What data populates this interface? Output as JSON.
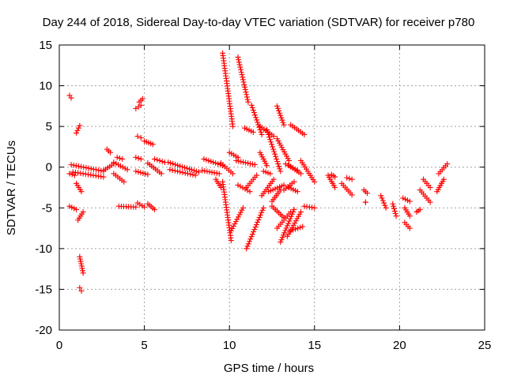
{
  "chart_data": {
    "type": "scatter",
    "title": "Day 244 of 2018, Sidereal Day-to-day VTEC variation (SDTVAR) for receiver p780",
    "xlabel": "GPS time / hours",
    "ylabel": "SDTVAR / TECUs",
    "xlim": [
      0,
      25
    ],
    "ylim": [
      -20,
      15
    ],
    "xticks": [
      0,
      5,
      10,
      15,
      20,
      25
    ],
    "yticks": [
      -20,
      -15,
      -10,
      -5,
      0,
      5,
      10,
      15
    ],
    "xtick_labels": [
      "0",
      "5",
      "10",
      "15",
      "20",
      "25"
    ],
    "ytick_labels": [
      "-20",
      "-15",
      "-10",
      "-5",
      "0",
      "5",
      "10",
      "15"
    ],
    "grid": true,
    "marker": "+",
    "color": "#ff0000",
    "series": [
      {
        "name": "SDTVAR",
        "segments": [
          {
            "x": [
              0.6,
              0.7
            ],
            "y": [
              8.8,
              8.5
            ]
          },
          {
            "x": [
              0.6,
              0.9
            ],
            "y": [
              -0.8,
              -1.0
            ]
          },
          {
            "x": [
              0.6,
              1.0
            ],
            "y": [
              -4.8,
              -5.2
            ]
          },
          {
            "x": [
              1.0,
              1.2
            ],
            "y": [
              4.2,
              5.1
            ]
          },
          {
            "x": [
              1.0,
              1.3
            ],
            "y": [
              -2.0,
              -3.0
            ]
          },
          {
            "x": [
              1.1,
              1.4
            ],
            "y": [
              -6.5,
              -5.5
            ]
          },
          {
            "x": [
              1.2,
              1.4
            ],
            "y": [
              -11.0,
              -13.0
            ]
          },
          {
            "x": [
              1.2,
              1.3
            ],
            "y": [
              -14.8,
              -15.2
            ]
          },
          {
            "x": [
              0.7,
              2.6
            ],
            "y": [
              0.3,
              -0.5
            ]
          },
          {
            "x": [
              0.8,
              2.6
            ],
            "y": [
              -0.6,
              -1.2
            ]
          },
          {
            "x": [
              2.6,
              3.2
            ],
            "y": [
              -0.4,
              0.4
            ]
          },
          {
            "x": [
              2.8,
              3.0
            ],
            "y": [
              2.2,
              1.8
            ]
          },
          {
            "x": [
              3.2,
              4.0
            ],
            "y": [
              0.6,
              -0.3
            ]
          },
          {
            "x": [
              3.2,
              3.8
            ],
            "y": [
              -0.8,
              -1.8
            ]
          },
          {
            "x": [
              3.4,
              3.7
            ],
            "y": [
              1.2,
              1.0
            ]
          },
          {
            "x": [
              3.5,
              4.5
            ],
            "y": [
              -4.8,
              -4.9
            ]
          },
          {
            "x": [
              4.5,
              4.8
            ],
            "y": [
              7.2,
              7.6
            ]
          },
          {
            "x": [
              4.7,
              4.9
            ],
            "y": [
              8.0,
              8.4
            ]
          },
          {
            "x": [
              4.6,
              4.8
            ],
            "y": [
              3.8,
              3.6
            ]
          },
          {
            "x": [
              4.5,
              4.8
            ],
            "y": [
              1.2,
              1.0
            ]
          },
          {
            "x": [
              4.5,
              5.2
            ],
            "y": [
              -0.5,
              -0.9
            ]
          },
          {
            "x": [
              4.6,
              5.0
            ],
            "y": [
              -4.4,
              -4.9
            ]
          },
          {
            "x": [
              5.0,
              5.5
            ],
            "y": [
              3.2,
              2.8
            ]
          },
          {
            "x": [
              5.2,
              6.0
            ],
            "y": [
              0.5,
              -0.8
            ]
          },
          {
            "x": [
              5.2,
              5.6
            ],
            "y": [
              -4.5,
              -5.2
            ]
          },
          {
            "x": [
              5.6,
              6.2
            ],
            "y": [
              1.0,
              0.6
            ]
          },
          {
            "x": [
              6.4,
              8.2
            ],
            "y": [
              0.6,
              -0.6
            ]
          },
          {
            "x": [
              6.5,
              8.0
            ],
            "y": [
              -0.3,
              -1.0
            ]
          },
          {
            "x": [
              8.5,
              9.6
            ],
            "y": [
              1.0,
              0.2
            ]
          },
          {
            "x": [
              8.4,
              9.4
            ],
            "y": [
              -0.4,
              -0.8
            ]
          },
          {
            "x": [
              9.2,
              9.5
            ],
            "y": [
              -1.5,
              -2.5
            ]
          },
          {
            "x": [
              9.6,
              10.2
            ],
            "y": [
              14.0,
              5.0
            ]
          },
          {
            "x": [
              9.6,
              10.1
            ],
            "y": [
              -1.8,
              -9.0
            ]
          },
          {
            "x": [
              9.5,
              10.2
            ],
            "y": [
              0.5,
              -0.8
            ]
          },
          {
            "x": [
              10.0,
              10.5
            ],
            "y": [
              1.8,
              1.2
            ]
          },
          {
            "x": [
              10.1,
              10.8
            ],
            "y": [
              -7.8,
              -5.0
            ]
          },
          {
            "x": [
              10.5,
              11.1
            ],
            "y": [
              13.5,
              8.0
            ]
          },
          {
            "x": [
              10.5,
              11.2
            ],
            "y": [
              -2.2,
              -3.0
            ]
          },
          {
            "x": [
              10.4,
              11.5
            ],
            "y": [
              0.8,
              0.3
            ]
          },
          {
            "x": [
              10.9,
              11.4
            ],
            "y": [
              4.8,
              4.3
            ]
          },
          {
            "x": [
              11.3,
              11.9
            ],
            "y": [
              7.6,
              4.0
            ]
          },
          {
            "x": [
              11.0,
              11.6
            ],
            "y": [
              -2.5,
              -1.0
            ]
          },
          {
            "x": [
              11.0,
              12.0
            ],
            "y": [
              -10.0,
              -5.0
            ]
          },
          {
            "x": [
              11.8,
              12.2
            ],
            "y": [
              1.8,
              0.2
            ]
          },
          {
            "x": [
              11.8,
              12.6
            ],
            "y": [
              5.0,
              3.8
            ]
          },
          {
            "x": [
              11.9,
              12.6
            ],
            "y": [
              -3.5,
              -1.5
            ]
          },
          {
            "x": [
              12.0,
              12.4
            ],
            "y": [
              -0.5,
              -0.8
            ]
          },
          {
            "x": [
              12.2,
              13.0
            ],
            "y": [
              4.6,
              -0.5
            ]
          },
          {
            "x": [
              12.3,
              13.2
            ],
            "y": [
              -3.0,
              -2.2
            ]
          },
          {
            "x": [
              12.5,
              13.0
            ],
            "y": [
              -4.2,
              -2.8
            ]
          },
          {
            "x": [
              12.5,
              13.2
            ],
            "y": [
              -4.8,
              -6.2
            ]
          },
          {
            "x": [
              12.8,
              13.2
            ],
            "y": [
              7.5,
              5.2
            ]
          },
          {
            "x": [
              12.8,
              13.5
            ],
            "y": [
              3.5,
              0.8
            ]
          },
          {
            "x": [
              12.8,
              13.6
            ],
            "y": [
              -7.5,
              -5.5
            ]
          },
          {
            "x": [
              13.0,
              13.8
            ],
            "y": [
              -9.2,
              -5.2
            ]
          },
          {
            "x": [
              13.2,
              13.8
            ],
            "y": [
              -2.8,
              -1.8
            ]
          },
          {
            "x": [
              13.3,
              14.0
            ],
            "y": [
              0.4,
              -0.4
            ]
          },
          {
            "x": [
              13.4,
              14.2
            ],
            "y": [
              -8.5,
              -5.5
            ]
          },
          {
            "x": [
              13.5,
              14.0
            ],
            "y": [
              -2.5,
              -3.0
            ]
          },
          {
            "x": [
              13.6,
              14.4
            ],
            "y": [
              5.2,
              4.0
            ]
          },
          {
            "x": [
              13.5,
              14.2
            ],
            "y": [
              0.2,
              -0.8
            ]
          },
          {
            "x": [
              13.6,
              14.3
            ],
            "y": [
              -7.8,
              -7.3
            ]
          },
          {
            "x": [
              14.4,
              15.0
            ],
            "y": [
              -4.8,
              -5.0
            ]
          },
          {
            "x": [
              14.2,
              15.0
            ],
            "y": [
              0.8,
              -1.8
            ]
          },
          {
            "x": [
              15.8,
              16.2
            ],
            "y": [
              -1.0,
              -2.5
            ]
          },
          {
            "x": [
              16.0,
              16.2
            ],
            "y": [
              -0.9,
              -1.2
            ]
          },
          {
            "x": [
              16.6,
              17.2
            ],
            "y": [
              -2.0,
              -3.4
            ]
          },
          {
            "x": [
              16.9,
              17.2
            ],
            "y": [
              -1.3,
              -1.5
            ]
          },
          {
            "x": [
              17.9,
              18.1
            ],
            "y": [
              -2.8,
              -3.2
            ]
          },
          {
            "x": [
              18.0,
              18.0
            ],
            "y": [
              -4.3,
              -4.3
            ]
          },
          {
            "x": [
              18.9,
              19.2
            ],
            "y": [
              -3.5,
              -5.0
            ]
          },
          {
            "x": [
              19.6,
              19.8
            ],
            "y": [
              -4.5,
              -6.0
            ]
          },
          {
            "x": [
              20.2,
              20.6
            ],
            "y": [
              -3.8,
              -4.2
            ]
          },
          {
            "x": [
              20.3,
              20.6
            ],
            "y": [
              -5.0,
              -6.0
            ]
          },
          {
            "x": [
              20.3,
              20.6
            ],
            "y": [
              -6.8,
              -7.5
            ]
          },
          {
            "x": [
              21.0,
              21.2
            ],
            "y": [
              -5.5,
              -5.2
            ]
          },
          {
            "x": [
              21.2,
              21.8
            ],
            "y": [
              -2.8,
              -4.3
            ]
          },
          {
            "x": [
              21.4,
              21.8
            ],
            "y": [
              -1.5,
              -2.5
            ]
          },
          {
            "x": [
              22.2,
              22.6
            ],
            "y": [
              -3.0,
              -1.5
            ]
          },
          {
            "x": [
              22.3,
              22.8
            ],
            "y": [
              -0.8,
              0.4
            ]
          }
        ]
      }
    ]
  }
}
